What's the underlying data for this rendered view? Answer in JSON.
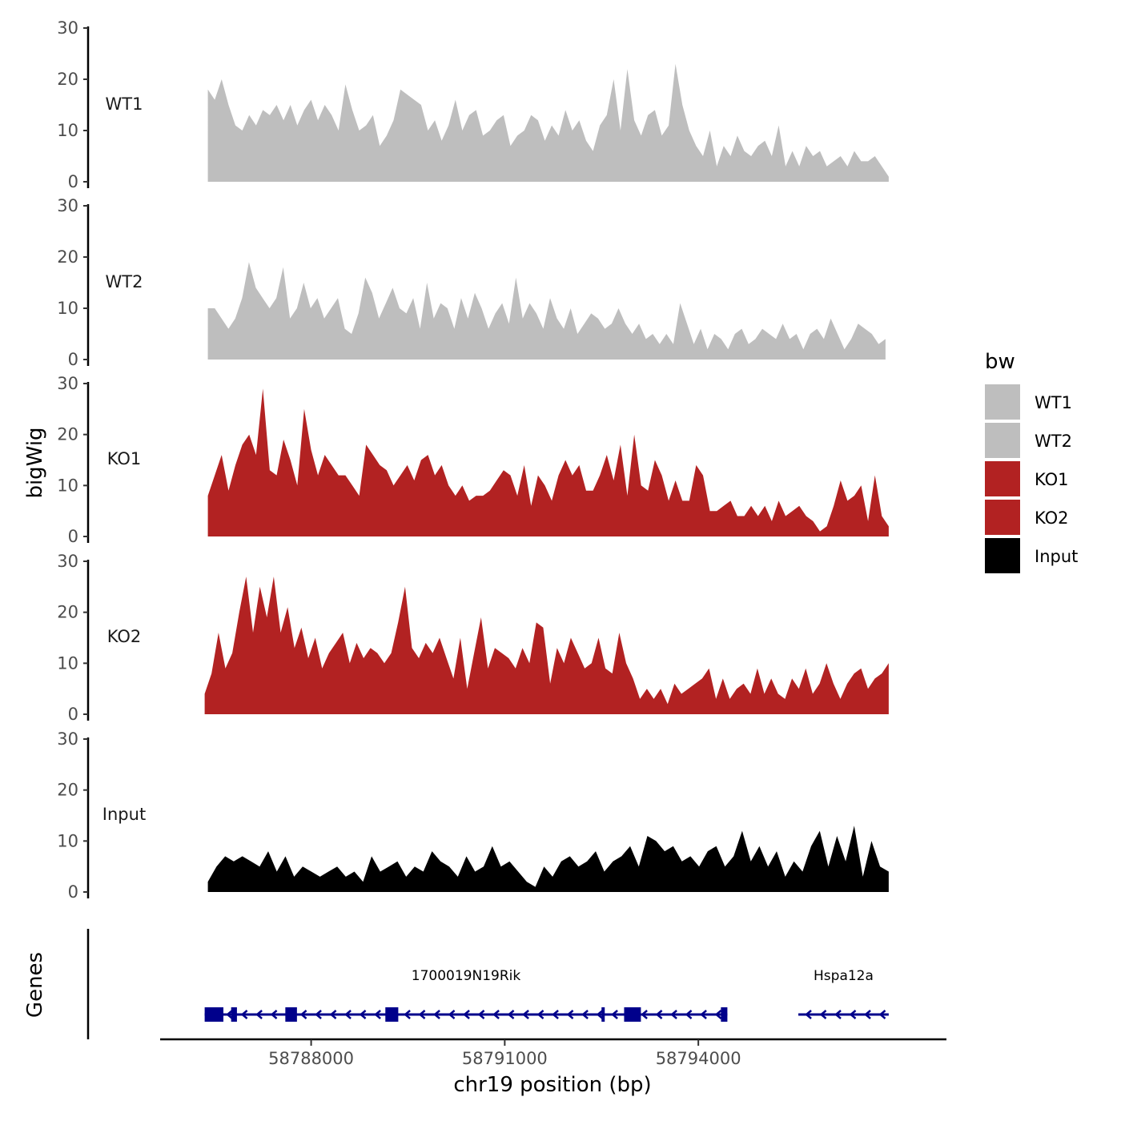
{
  "chart_data": {
    "type": "area",
    "title": "",
    "ylabel": "bigWig",
    "xlabel": "chr19 position (bp)",
    "xlim": [
      58785660,
      58797820
    ],
    "ylim": [
      0,
      30
    ],
    "yticks": [
      0,
      10,
      20,
      30
    ],
    "xticks": [
      58788000,
      58791000,
      58794000
    ],
    "xtick_labels": [
      "58788000",
      "58791000",
      "58794000"
    ],
    "legend": {
      "title": "bw",
      "position": "right",
      "entries": [
        {
          "label": "WT1",
          "color": "#bebebe"
        },
        {
          "label": "WT2",
          "color": "#bebebe"
        },
        {
          "label": "KO1",
          "color": "#b22222"
        },
        {
          "label": "KO2",
          "color": "#b22222"
        },
        {
          "label": "Input",
          "color": "#000000"
        }
      ]
    },
    "series": [
      {
        "name": "WT1",
        "color": "#bebebe",
        "x_start": 58786400,
        "x_end": 58796950,
        "values": [
          18,
          16,
          20,
          15,
          11,
          10,
          13,
          11,
          14,
          13,
          15,
          12,
          15,
          11,
          14,
          16,
          12,
          15,
          13,
          10,
          19,
          14,
          10,
          11,
          13,
          7,
          9,
          12,
          18,
          17,
          16,
          15,
          10,
          12,
          8,
          11,
          16,
          10,
          13,
          14,
          9,
          10,
          12,
          13,
          7,
          9,
          10,
          13,
          12,
          8,
          11,
          9,
          14,
          10,
          12,
          8,
          6,
          11,
          13,
          20,
          10,
          22,
          12,
          9,
          13,
          14,
          9,
          11,
          23,
          15,
          10,
          7,
          5,
          10,
          3,
          7,
          5,
          9,
          6,
          5,
          7,
          8,
          5,
          11,
          3,
          6,
          3,
          7,
          5,
          6,
          3,
          4,
          5,
          3,
          6,
          4,
          4,
          5,
          3,
          1
        ]
      },
      {
        "name": "WT2",
        "color": "#bebebe",
        "x_start": 58786400,
        "x_end": 58796900,
        "values": [
          10,
          10,
          8,
          6,
          8,
          12,
          19,
          14,
          12,
          10,
          12,
          18,
          8,
          10,
          15,
          10,
          12,
          8,
          10,
          12,
          6,
          5,
          9,
          16,
          13,
          8,
          11,
          14,
          10,
          9,
          12,
          6,
          15,
          8,
          11,
          10,
          6,
          12,
          8,
          13,
          10,
          6,
          9,
          11,
          7,
          16,
          8,
          11,
          9,
          6,
          12,
          8,
          6,
          10,
          5,
          7,
          9,
          8,
          6,
          7,
          10,
          7,
          5,
          7,
          4,
          5,
          3,
          5,
          3,
          11,
          7,
          3,
          6,
          2,
          5,
          4,
          2,
          5,
          6,
          3,
          4,
          6,
          5,
          4,
          7,
          4,
          5,
          2,
          5,
          6,
          4,
          8,
          5,
          2,
          4,
          7,
          6,
          5,
          3,
          4
        ]
      },
      {
        "name": "KO1",
        "color": "#b22222",
        "x_start": 58786400,
        "x_end": 58796950,
        "values": [
          8,
          12,
          16,
          9,
          14,
          18,
          20,
          16,
          29,
          13,
          12,
          19,
          15,
          10,
          25,
          17,
          12,
          16,
          14,
          12,
          12,
          10,
          8,
          18,
          16,
          14,
          13,
          10,
          12,
          14,
          11,
          15,
          16,
          12,
          14,
          10,
          8,
          10,
          7,
          8,
          8,
          9,
          11,
          13,
          12,
          8,
          14,
          6,
          12,
          10,
          7,
          12,
          15,
          12,
          14,
          9,
          9,
          12,
          16,
          11,
          18,
          8,
          20,
          10,
          9,
          15,
          12,
          7,
          11,
          7,
          7,
          14,
          12,
          5,
          5,
          6,
          7,
          4,
          4,
          6,
          4,
          6,
          3,
          7,
          4,
          5,
          6,
          4,
          3,
          1,
          2,
          6,
          11,
          7,
          8,
          10,
          3,
          12,
          4,
          2
        ]
      },
      {
        "name": "KO2",
        "color": "#b22222",
        "x_start": 58786350,
        "x_end": 58796950,
        "values": [
          4,
          8,
          16,
          9,
          12,
          20,
          27,
          16,
          25,
          19,
          27,
          16,
          21,
          13,
          17,
          11,
          15,
          9,
          12,
          14,
          16,
          10,
          14,
          11,
          13,
          12,
          10,
          12,
          18,
          25,
          13,
          11,
          14,
          12,
          15,
          11,
          7,
          15,
          5,
          12,
          19,
          9,
          13,
          12,
          11,
          9,
          13,
          10,
          18,
          17,
          6,
          13,
          10,
          15,
          12,
          9,
          10,
          15,
          9,
          8,
          16,
          10,
          7,
          3,
          5,
          3,
          5,
          2,
          6,
          4,
          5,
          6,
          7,
          9,
          3,
          7,
          3,
          5,
          6,
          4,
          9,
          4,
          7,
          4,
          3,
          7,
          5,
          9,
          4,
          6,
          10,
          6,
          3,
          6,
          8,
          9,
          5,
          7,
          8,
          10
        ]
      },
      {
        "name": "Input",
        "color": "#000000",
        "x_start": 58786400,
        "x_end": 58796950,
        "values": [
          2,
          5,
          7,
          6,
          7,
          6,
          5,
          8,
          4,
          7,
          3,
          5,
          4,
          3,
          4,
          5,
          3,
          4,
          2,
          7,
          4,
          5,
          6,
          3,
          5,
          4,
          8,
          6,
          5,
          3,
          7,
          4,
          5,
          9,
          5,
          6,
          4,
          2,
          1,
          5,
          3,
          6,
          7,
          5,
          6,
          8,
          4,
          6,
          7,
          9,
          5,
          11,
          10,
          8,
          9,
          6,
          7,
          5,
          8,
          9,
          5,
          7,
          12,
          6,
          9,
          5,
          8,
          3,
          6,
          4,
          9,
          12,
          5,
          11,
          6,
          13,
          3,
          10,
          5,
          4
        ]
      }
    ],
    "genes": [
      {
        "name": "1700019N19Rik",
        "start": 58786350,
        "end": 58794450,
        "strand": "-",
        "exons": [
          [
            58786350,
            58786640
          ],
          [
            58786760,
            58786850
          ],
          [
            58787600,
            58787780
          ],
          [
            58789150,
            58789350
          ],
          [
            58792500,
            58792540
          ],
          [
            58792850,
            58793110
          ],
          [
            58794350,
            58794450
          ]
        ]
      },
      {
        "name": "Hspa12a",
        "start": 58795550,
        "end": 58796950,
        "strand": "-",
        "exons": []
      }
    ],
    "gene_track_label": "Genes"
  }
}
